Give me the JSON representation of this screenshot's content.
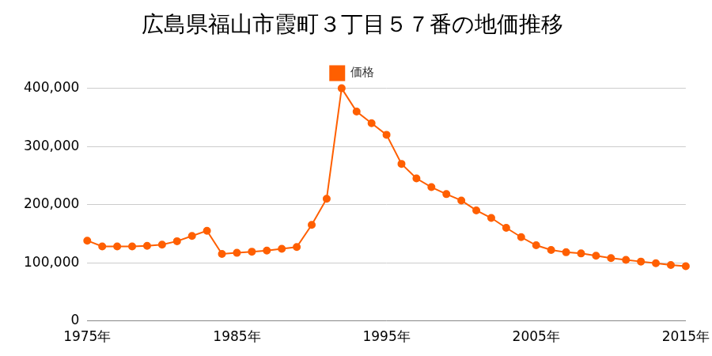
{
  "chart_data": {
    "type": "line",
    "title": "広島県福山市霞町３丁目５７番の地価推移",
    "x": [
      1975,
      1976,
      1977,
      1978,
      1979,
      1980,
      1981,
      1982,
      1983,
      1984,
      1985,
      1986,
      1987,
      1988,
      1989,
      1990,
      1991,
      1992,
      1993,
      1994,
      1995,
      1996,
      1997,
      1998,
      1999,
      2000,
      2001,
      2002,
      2003,
      2004,
      2005,
      2006,
      2007,
      2008,
      2009,
      2010,
      2011,
      2012,
      2013,
      2014,
      2015
    ],
    "series": [
      {
        "name": "価格",
        "color": "#ff5f00",
        "marker": "circle",
        "values": [
          138000,
          128000,
          128000,
          128000,
          129000,
          131000,
          137000,
          146000,
          155000,
          115000,
          117000,
          119000,
          121000,
          124000,
          127000,
          165000,
          210000,
          400000,
          360000,
          340000,
          320000,
          270000,
          245000,
          230000,
          218000,
          207000,
          190000,
          177000,
          160000,
          144000,
          130000,
          122000,
          118000,
          116000,
          112000,
          108000,
          105000,
          102000,
          99000,
          96000,
          94000
        ]
      }
    ],
    "xlim": [
      1975,
      2015
    ],
    "xticks": [
      {
        "value": 1975,
        "label": "1975年"
      },
      {
        "value": 1985,
        "label": "1985年"
      },
      {
        "value": 1995,
        "label": "1995年"
      },
      {
        "value": 2005,
        "label": "2005年"
      },
      {
        "value": 2015,
        "label": "2015年"
      }
    ],
    "ylim": [
      0,
      400000
    ],
    "yticks": [
      0,
      {
        "value": 100000,
        "label": "100,000"
      },
      {
        "value": 200000,
        "label": "200,000"
      },
      {
        "value": 300000,
        "label": "300,000"
      },
      {
        "value": 400000,
        "label": "400,000"
      }
    ],
    "grid": true,
    "legend": "top"
  }
}
